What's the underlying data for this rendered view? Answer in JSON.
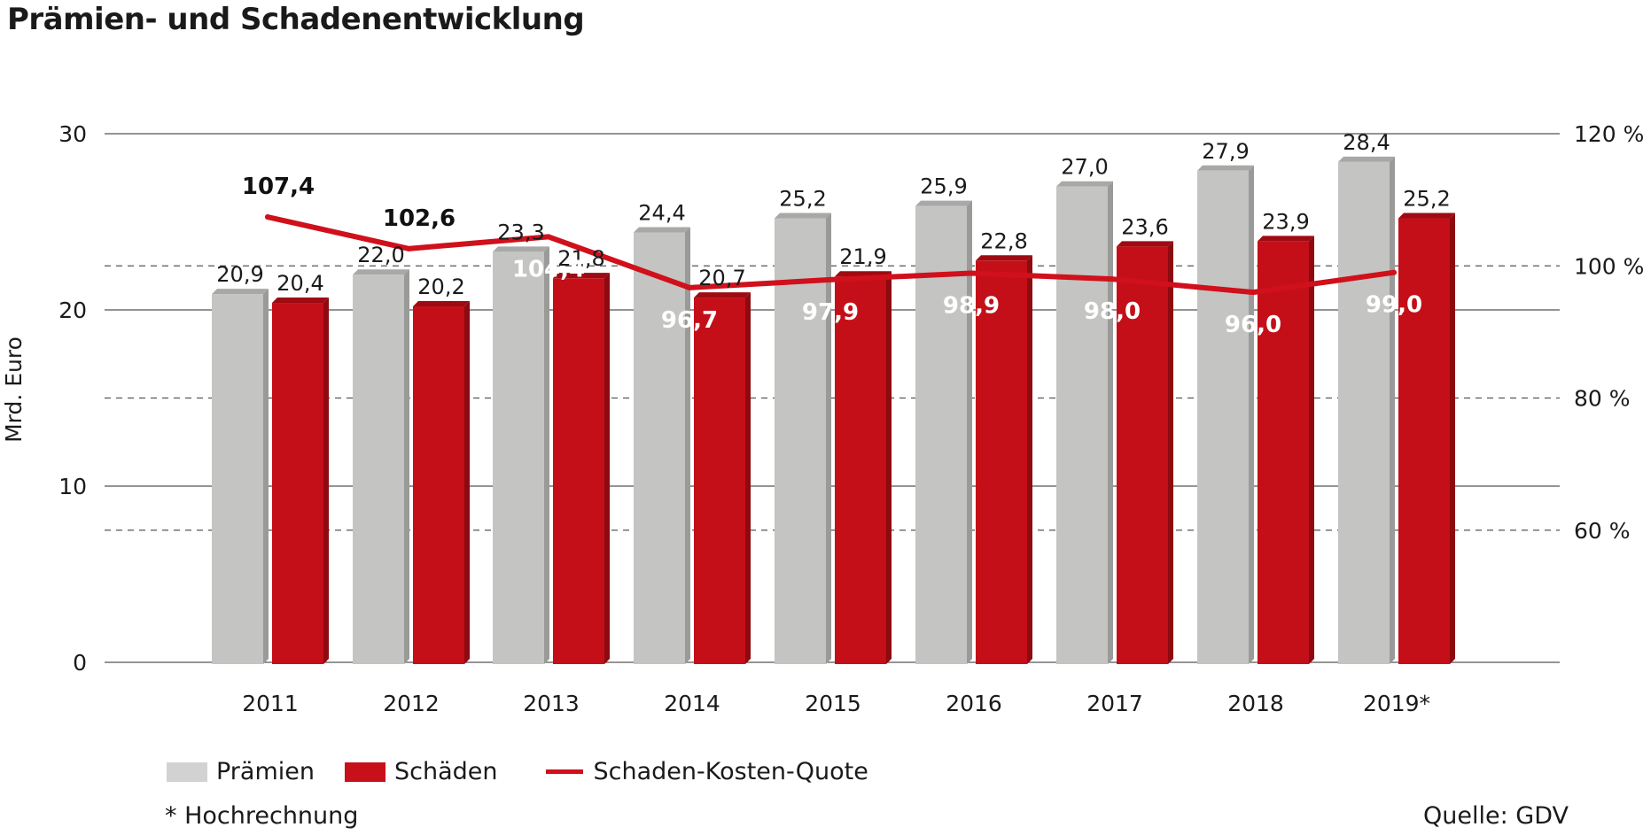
{
  "title": "Prämien- und Schadenentwicklung",
  "chart_data": {
    "type": "bar",
    "title": "Prämien- und Schadenentwicklung",
    "categories": [
      "2011",
      "2012",
      "2013",
      "2014",
      "2015",
      "2016",
      "2017",
      "2018",
      "2019*"
    ],
    "series": [
      {
        "name": "Prämien",
        "axis": "left",
        "color": "#c2c2c0",
        "values": [
          20.9,
          22.0,
          23.3,
          24.4,
          25.2,
          25.9,
          27.0,
          27.9,
          28.4
        ],
        "labels": [
          "20,9",
          "22,0",
          "23,3",
          "24,4",
          "25,2",
          "25,9",
          "27,0",
          "27,9",
          "28,4"
        ]
      },
      {
        "name": "Schäden",
        "axis": "left",
        "color": "#c8101a",
        "values": [
          20.4,
          20.2,
          21.8,
          20.7,
          21.9,
          22.8,
          23.6,
          23.9,
          25.2
        ],
        "labels": [
          "20,4",
          "20,2",
          "21,8",
          "20,7",
          "21,9",
          "22,8",
          "23,6",
          "23,9",
          "25,2"
        ]
      },
      {
        "name": "Schaden-Kosten-Quote",
        "axis": "right",
        "type": "line",
        "color": "#d0101b",
        "values": [
          107.4,
          102.6,
          104.4,
          96.7,
          97.9,
          98.9,
          98.0,
          96.0,
          99.0
        ],
        "labels": [
          "107,4",
          "102,6",
          "104,4",
          "96,7",
          "97,9",
          "98,9",
          "98,0",
          "96,0",
          "99,0"
        ]
      }
    ],
    "ylabel": "Mrd. Euro",
    "ylim": [
      0,
      30
    ],
    "yticks": [
      "0",
      "10",
      "20",
      "30"
    ],
    "y2lim": [
      40,
      120
    ],
    "y2ticks": [
      "60 %",
      "80 %",
      "100 %",
      "120 %"
    ],
    "grid": true,
    "legend_position": "bottom-left"
  },
  "legend": {
    "premium": "Prämien",
    "claims": "Schäden",
    "ratio": "Schaden-Kosten-Quote"
  },
  "footnote": "* Hochrechnung",
  "source": "Quelle: GDV"
}
